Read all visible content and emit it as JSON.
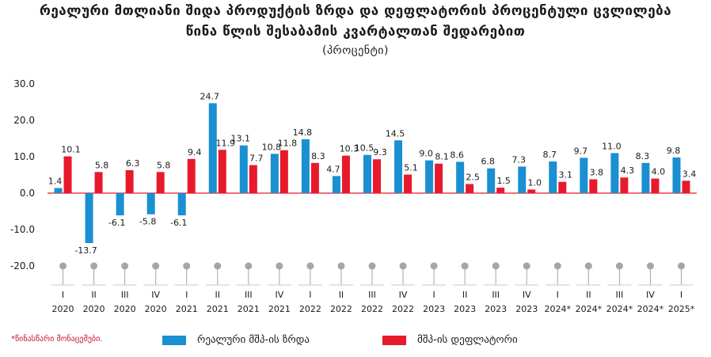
{
  "header": {
    "title_line1": "რეალური მთლიანი შიდა პროდუქტის ზრდა და დეფლატორის პროცენტული ცვლილება",
    "title_line2": "წინა წლის შესაბამის კვარტალთან შედარებით",
    "title_line3": "(პროცენტი)"
  },
  "footnote": "*წინასწარი მონაცემები.",
  "legend": {
    "series1": "რეალური მშპ-ის ზრდა",
    "series2": "მშპ-ის დეფლატორი"
  },
  "colors": {
    "series1": "#1a8fd1",
    "series2": "#e8192c",
    "baseline": "#e8192c",
    "marker": "#a6a6a6"
  },
  "chart_data": {
    "type": "bar",
    "categories": [
      [
        "I",
        "2020"
      ],
      [
        "II",
        "2020"
      ],
      [
        "III",
        "2020"
      ],
      [
        "IV",
        "2020"
      ],
      [
        "I",
        "2021"
      ],
      [
        "II",
        "2021"
      ],
      [
        "III",
        "2021"
      ],
      [
        "IV",
        "2021"
      ],
      [
        "I",
        "2022"
      ],
      [
        "II",
        "2022"
      ],
      [
        "III",
        "2022"
      ],
      [
        "IV",
        "2022"
      ],
      [
        "I",
        "2023"
      ],
      [
        "II",
        "2023"
      ],
      [
        "III",
        "2023"
      ],
      [
        "IV",
        "2023"
      ],
      [
        "I",
        "2024*"
      ],
      [
        "II",
        "2024*"
      ],
      [
        "III",
        "2024*"
      ],
      [
        "IV",
        "2024*"
      ],
      [
        "I",
        "2025*"
      ]
    ],
    "series": [
      {
        "name": "რეალური მშპ-ის ზრდა",
        "values": [
          1.4,
          -13.7,
          -6.1,
          -5.8,
          -6.1,
          24.7,
          13.1,
          10.8,
          14.8,
          4.7,
          10.5,
          14.5,
          9.0,
          8.6,
          6.8,
          7.3,
          8.7,
          9.7,
          11.0,
          8.3,
          9.8
        ]
      },
      {
        "name": "მშპ-ის დეფლატორი",
        "values": [
          10.1,
          5.8,
          6.3,
          5.8,
          9.4,
          11.9,
          7.7,
          11.8,
          8.3,
          10.3,
          9.3,
          5.1,
          8.1,
          2.5,
          1.5,
          1.0,
          3.1,
          3.8,
          4.3,
          4.0,
          3.4
        ]
      }
    ],
    "y_ticks": [
      "30.0",
      "20.0",
      "10.0",
      "0.0",
      "-10.0",
      "-20.0"
    ],
    "ylim": [
      -20,
      30
    ],
    "grid": false,
    "legend_position": "bottom"
  }
}
